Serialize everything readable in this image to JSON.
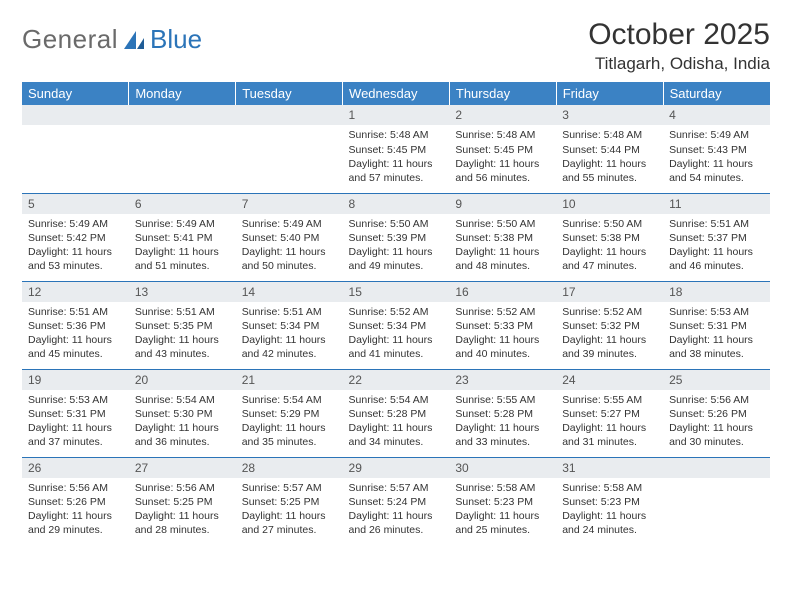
{
  "logo": {
    "general": "General",
    "blue": "Blue"
  },
  "header": {
    "month": "October 2025",
    "location": "Titlagarh, Odisha, India"
  },
  "colors": {
    "header_bg": "#3b82c4",
    "header_text": "#ffffff",
    "rule": "#2b74b8",
    "daynum_bg": "#e9ecef",
    "body_text": "#333333",
    "logo_gray": "#6a6a6a",
    "logo_blue": "#2b74b8"
  },
  "weekdays": [
    "Sunday",
    "Monday",
    "Tuesday",
    "Wednesday",
    "Thursday",
    "Friday",
    "Saturday"
  ],
  "weeks": [
    [
      null,
      null,
      null,
      {
        "n": "1",
        "sr": "5:48 AM",
        "ss": "5:45 PM",
        "dh": "11",
        "dm": "57"
      },
      {
        "n": "2",
        "sr": "5:48 AM",
        "ss": "5:45 PM",
        "dh": "11",
        "dm": "56"
      },
      {
        "n": "3",
        "sr": "5:48 AM",
        "ss": "5:44 PM",
        "dh": "11",
        "dm": "55"
      },
      {
        "n": "4",
        "sr": "5:49 AM",
        "ss": "5:43 PM",
        "dh": "11",
        "dm": "54"
      }
    ],
    [
      {
        "n": "5",
        "sr": "5:49 AM",
        "ss": "5:42 PM",
        "dh": "11",
        "dm": "53"
      },
      {
        "n": "6",
        "sr": "5:49 AM",
        "ss": "5:41 PM",
        "dh": "11",
        "dm": "51"
      },
      {
        "n": "7",
        "sr": "5:49 AM",
        "ss": "5:40 PM",
        "dh": "11",
        "dm": "50"
      },
      {
        "n": "8",
        "sr": "5:50 AM",
        "ss": "5:39 PM",
        "dh": "11",
        "dm": "49"
      },
      {
        "n": "9",
        "sr": "5:50 AM",
        "ss": "5:38 PM",
        "dh": "11",
        "dm": "48"
      },
      {
        "n": "10",
        "sr": "5:50 AM",
        "ss": "5:38 PM",
        "dh": "11",
        "dm": "47"
      },
      {
        "n": "11",
        "sr": "5:51 AM",
        "ss": "5:37 PM",
        "dh": "11",
        "dm": "46"
      }
    ],
    [
      {
        "n": "12",
        "sr": "5:51 AM",
        "ss": "5:36 PM",
        "dh": "11",
        "dm": "45"
      },
      {
        "n": "13",
        "sr": "5:51 AM",
        "ss": "5:35 PM",
        "dh": "11",
        "dm": "43"
      },
      {
        "n": "14",
        "sr": "5:51 AM",
        "ss": "5:34 PM",
        "dh": "11",
        "dm": "42"
      },
      {
        "n": "15",
        "sr": "5:52 AM",
        "ss": "5:34 PM",
        "dh": "11",
        "dm": "41"
      },
      {
        "n": "16",
        "sr": "5:52 AM",
        "ss": "5:33 PM",
        "dh": "11",
        "dm": "40"
      },
      {
        "n": "17",
        "sr": "5:52 AM",
        "ss": "5:32 PM",
        "dh": "11",
        "dm": "39"
      },
      {
        "n": "18",
        "sr": "5:53 AM",
        "ss": "5:31 PM",
        "dh": "11",
        "dm": "38"
      }
    ],
    [
      {
        "n": "19",
        "sr": "5:53 AM",
        "ss": "5:31 PM",
        "dh": "11",
        "dm": "37"
      },
      {
        "n": "20",
        "sr": "5:54 AM",
        "ss": "5:30 PM",
        "dh": "11",
        "dm": "36"
      },
      {
        "n": "21",
        "sr": "5:54 AM",
        "ss": "5:29 PM",
        "dh": "11",
        "dm": "35"
      },
      {
        "n": "22",
        "sr": "5:54 AM",
        "ss": "5:28 PM",
        "dh": "11",
        "dm": "34"
      },
      {
        "n": "23",
        "sr": "5:55 AM",
        "ss": "5:28 PM",
        "dh": "11",
        "dm": "33"
      },
      {
        "n": "24",
        "sr": "5:55 AM",
        "ss": "5:27 PM",
        "dh": "11",
        "dm": "31"
      },
      {
        "n": "25",
        "sr": "5:56 AM",
        "ss": "5:26 PM",
        "dh": "11",
        "dm": "30"
      }
    ],
    [
      {
        "n": "26",
        "sr": "5:56 AM",
        "ss": "5:26 PM",
        "dh": "11",
        "dm": "29"
      },
      {
        "n": "27",
        "sr": "5:56 AM",
        "ss": "5:25 PM",
        "dh": "11",
        "dm": "28"
      },
      {
        "n": "28",
        "sr": "5:57 AM",
        "ss": "5:25 PM",
        "dh": "11",
        "dm": "27"
      },
      {
        "n": "29",
        "sr": "5:57 AM",
        "ss": "5:24 PM",
        "dh": "11",
        "dm": "26"
      },
      {
        "n": "30",
        "sr": "5:58 AM",
        "ss": "5:23 PM",
        "dh": "11",
        "dm": "25"
      },
      {
        "n": "31",
        "sr": "5:58 AM",
        "ss": "5:23 PM",
        "dh": "11",
        "dm": "24"
      },
      null
    ]
  ]
}
